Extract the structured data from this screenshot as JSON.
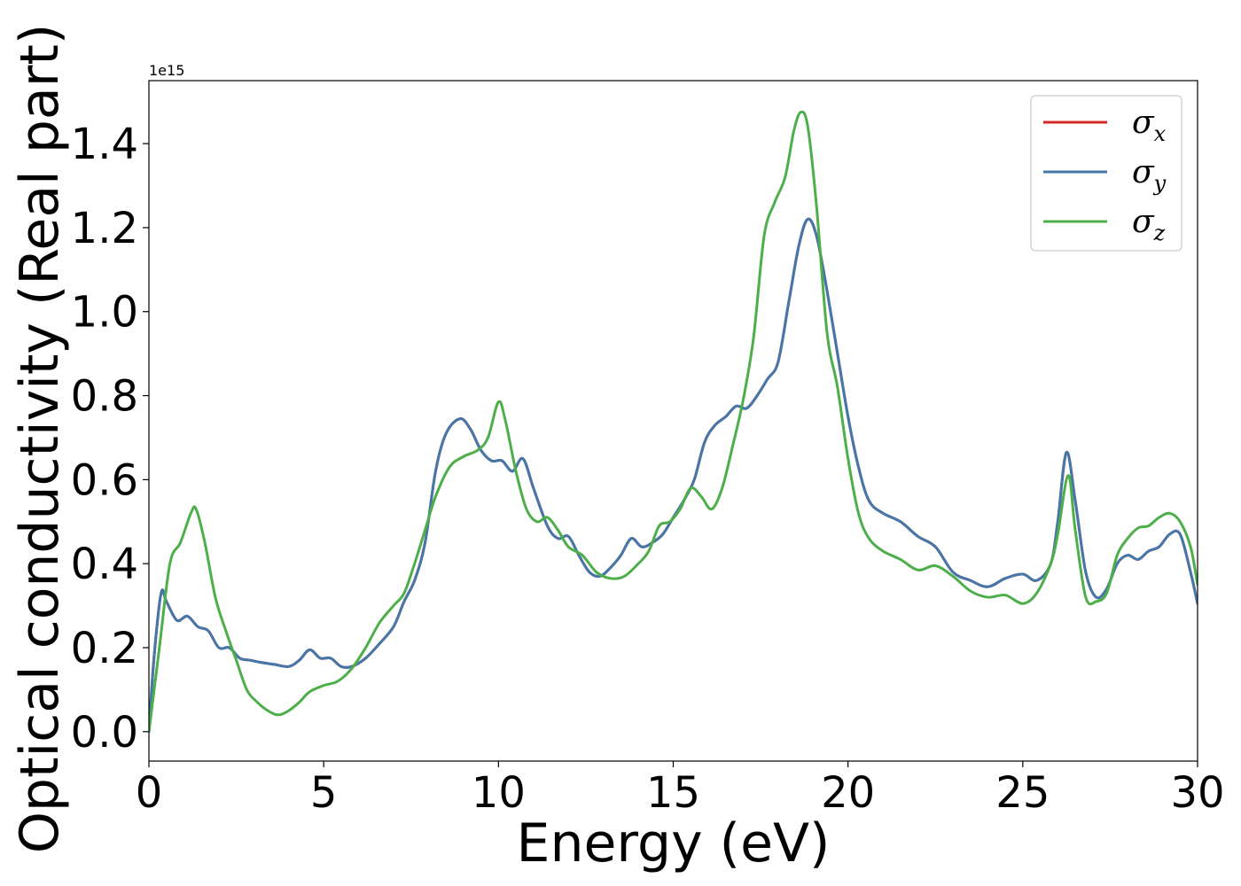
{
  "chart_data": {
    "type": "line",
    "title": "",
    "xlabel": "Energy (eV)",
    "ylabel": "Optical conductivity (Real part)",
    "y_offset_label": "1e15",
    "xlim": [
      0,
      30
    ],
    "ylim": [
      -0.07,
      1.55
    ],
    "x_ticks": [
      0,
      5,
      10,
      15,
      20,
      25,
      30
    ],
    "x_tick_labels": [
      "0",
      "5",
      "10",
      "15",
      "20",
      "25",
      "30"
    ],
    "y_ticks": [
      0.0,
      0.2,
      0.4,
      0.6,
      0.8,
      1.0,
      1.2,
      1.4
    ],
    "y_tick_labels": [
      "0.0",
      "0.2",
      "0.4",
      "0.6",
      "0.8",
      "1.0",
      "1.2",
      "1.4"
    ],
    "grid": false,
    "legend_position": "top-right",
    "series": [
      {
        "name": "σx",
        "legend_symbol": "σ",
        "legend_subscript": "x",
        "color": "#d62728",
        "x": [
          0,
          0.15,
          0.35,
          0.5,
          0.8,
          1.1,
          1.4,
          1.7,
          2.0,
          2.3,
          2.6,
          2.9,
          3.2,
          3.6,
          4.0,
          4.3,
          4.6,
          4.9,
          5.2,
          5.5,
          5.8,
          6.2,
          6.6,
          7.0,
          7.3,
          7.6,
          7.9,
          8.2,
          8.5,
          8.9,
          9.2,
          9.5,
          9.8,
          10.1,
          10.4,
          10.7,
          11.0,
          11.4,
          11.7,
          12.0,
          12.3,
          12.6,
          12.9,
          13.2,
          13.5,
          13.8,
          14.1,
          14.4,
          14.7,
          15.0,
          15.3,
          15.6,
          15.9,
          16.2,
          16.5,
          16.8,
          17.1,
          17.4,
          17.7,
          18.0,
          18.3,
          18.6,
          18.85,
          19.1,
          19.4,
          19.7,
          20.0,
          20.3,
          20.6,
          21.0,
          21.5,
          22.0,
          22.5,
          23.0,
          23.5,
          24.0,
          24.5,
          25.0,
          25.4,
          25.8,
          26.0,
          26.25,
          26.5,
          26.8,
          27.1,
          27.4,
          27.7,
          28.0,
          28.3,
          28.6,
          28.9,
          29.2,
          29.5,
          29.8,
          30.0
        ],
        "y": [
          0.0,
          0.18,
          0.33,
          0.31,
          0.265,
          0.275,
          0.25,
          0.24,
          0.2,
          0.2,
          0.175,
          0.17,
          0.165,
          0.16,
          0.155,
          0.17,
          0.195,
          0.175,
          0.175,
          0.155,
          0.155,
          0.175,
          0.21,
          0.25,
          0.31,
          0.36,
          0.45,
          0.62,
          0.71,
          0.745,
          0.72,
          0.67,
          0.645,
          0.645,
          0.62,
          0.65,
          0.58,
          0.49,
          0.46,
          0.465,
          0.42,
          0.38,
          0.37,
          0.39,
          0.42,
          0.46,
          0.44,
          0.45,
          0.47,
          0.51,
          0.55,
          0.6,
          0.69,
          0.73,
          0.75,
          0.775,
          0.77,
          0.8,
          0.84,
          0.88,
          1.02,
          1.16,
          1.22,
          1.18,
          1.05,
          0.9,
          0.75,
          0.63,
          0.55,
          0.52,
          0.5,
          0.465,
          0.44,
          0.38,
          0.36,
          0.345,
          0.365,
          0.375,
          0.36,
          0.4,
          0.5,
          0.665,
          0.55,
          0.38,
          0.32,
          0.34,
          0.4,
          0.42,
          0.41,
          0.43,
          0.44,
          0.47,
          0.47,
          0.38,
          0.305
        ]
      },
      {
        "name": "σy",
        "legend_symbol": "σ",
        "legend_subscript": "y",
        "color": "#4477aa",
        "x": [
          0,
          0.15,
          0.35,
          0.5,
          0.8,
          1.1,
          1.4,
          1.7,
          2.0,
          2.3,
          2.6,
          2.9,
          3.2,
          3.6,
          4.0,
          4.3,
          4.6,
          4.9,
          5.2,
          5.5,
          5.8,
          6.2,
          6.6,
          7.0,
          7.3,
          7.6,
          7.9,
          8.2,
          8.5,
          8.9,
          9.2,
          9.5,
          9.8,
          10.1,
          10.4,
          10.7,
          11.0,
          11.4,
          11.7,
          12.0,
          12.3,
          12.6,
          12.9,
          13.2,
          13.5,
          13.8,
          14.1,
          14.4,
          14.7,
          15.0,
          15.3,
          15.6,
          15.9,
          16.2,
          16.5,
          16.8,
          17.1,
          17.4,
          17.7,
          18.0,
          18.3,
          18.6,
          18.85,
          19.1,
          19.4,
          19.7,
          20.0,
          20.3,
          20.6,
          21.0,
          21.5,
          22.0,
          22.5,
          23.0,
          23.5,
          24.0,
          24.5,
          25.0,
          25.4,
          25.8,
          26.0,
          26.25,
          26.5,
          26.8,
          27.1,
          27.4,
          27.7,
          28.0,
          28.3,
          28.6,
          28.9,
          29.2,
          29.5,
          29.8,
          30.0
        ],
        "y": [
          0.0,
          0.18,
          0.33,
          0.31,
          0.265,
          0.275,
          0.25,
          0.24,
          0.2,
          0.2,
          0.175,
          0.17,
          0.165,
          0.16,
          0.155,
          0.17,
          0.195,
          0.175,
          0.175,
          0.155,
          0.155,
          0.175,
          0.21,
          0.25,
          0.31,
          0.36,
          0.45,
          0.62,
          0.71,
          0.745,
          0.72,
          0.67,
          0.645,
          0.645,
          0.62,
          0.65,
          0.58,
          0.49,
          0.46,
          0.465,
          0.42,
          0.38,
          0.37,
          0.39,
          0.42,
          0.46,
          0.44,
          0.45,
          0.47,
          0.51,
          0.55,
          0.6,
          0.69,
          0.73,
          0.75,
          0.775,
          0.77,
          0.8,
          0.84,
          0.88,
          1.02,
          1.16,
          1.22,
          1.18,
          1.05,
          0.9,
          0.75,
          0.63,
          0.55,
          0.52,
          0.5,
          0.465,
          0.44,
          0.38,
          0.36,
          0.345,
          0.365,
          0.375,
          0.36,
          0.4,
          0.5,
          0.665,
          0.55,
          0.38,
          0.32,
          0.34,
          0.4,
          0.42,
          0.41,
          0.43,
          0.44,
          0.47,
          0.47,
          0.38,
          0.305
        ]
      },
      {
        "name": "σz",
        "legend_symbol": "σ",
        "legend_subscript": "z",
        "color": "#4daf4a",
        "x": [
          0,
          0.3,
          0.6,
          0.9,
          1.2,
          1.35,
          1.6,
          1.9,
          2.2,
          2.5,
          2.8,
          3.1,
          3.4,
          3.7,
          4.0,
          4.3,
          4.6,
          5.0,
          5.4,
          5.8,
          6.2,
          6.6,
          7.0,
          7.3,
          7.6,
          7.9,
          8.2,
          8.6,
          9.0,
          9.4,
          9.7,
          10.0,
          10.2,
          10.5,
          10.8,
          11.1,
          11.4,
          11.7,
          12.0,
          12.4,
          12.8,
          13.2,
          13.6,
          14.0,
          14.3,
          14.6,
          14.9,
          15.2,
          15.5,
          15.8,
          16.1,
          16.4,
          16.7,
          17.0,
          17.3,
          17.6,
          17.9,
          18.2,
          18.45,
          18.65,
          18.85,
          19.1,
          19.4,
          19.7,
          20.0,
          20.3,
          20.6,
          21.0,
          21.5,
          22.0,
          22.5,
          23.0,
          23.5,
          24.0,
          24.5,
          25.0,
          25.4,
          25.8,
          26.0,
          26.3,
          26.5,
          26.8,
          27.1,
          27.4,
          27.7,
          28.0,
          28.3,
          28.6,
          28.9,
          29.2,
          29.5,
          29.8,
          30.0
        ],
        "y": [
          0.0,
          0.2,
          0.4,
          0.45,
          0.52,
          0.53,
          0.45,
          0.32,
          0.24,
          0.17,
          0.1,
          0.07,
          0.05,
          0.04,
          0.05,
          0.07,
          0.095,
          0.11,
          0.12,
          0.15,
          0.2,
          0.26,
          0.3,
          0.33,
          0.4,
          0.48,
          0.56,
          0.63,
          0.655,
          0.67,
          0.7,
          0.785,
          0.74,
          0.62,
          0.53,
          0.5,
          0.51,
          0.48,
          0.44,
          0.42,
          0.38,
          0.365,
          0.37,
          0.4,
          0.43,
          0.49,
          0.5,
          0.53,
          0.58,
          0.56,
          0.53,
          0.58,
          0.68,
          0.79,
          0.94,
          1.18,
          1.26,
          1.32,
          1.43,
          1.475,
          1.44,
          1.25,
          0.95,
          0.82,
          0.65,
          0.52,
          0.46,
          0.43,
          0.41,
          0.385,
          0.395,
          0.37,
          0.335,
          0.32,
          0.325,
          0.305,
          0.33,
          0.4,
          0.47,
          0.61,
          0.48,
          0.32,
          0.31,
          0.33,
          0.42,
          0.46,
          0.485,
          0.49,
          0.51,
          0.52,
          0.5,
          0.44,
          0.35
        ]
      }
    ]
  }
}
